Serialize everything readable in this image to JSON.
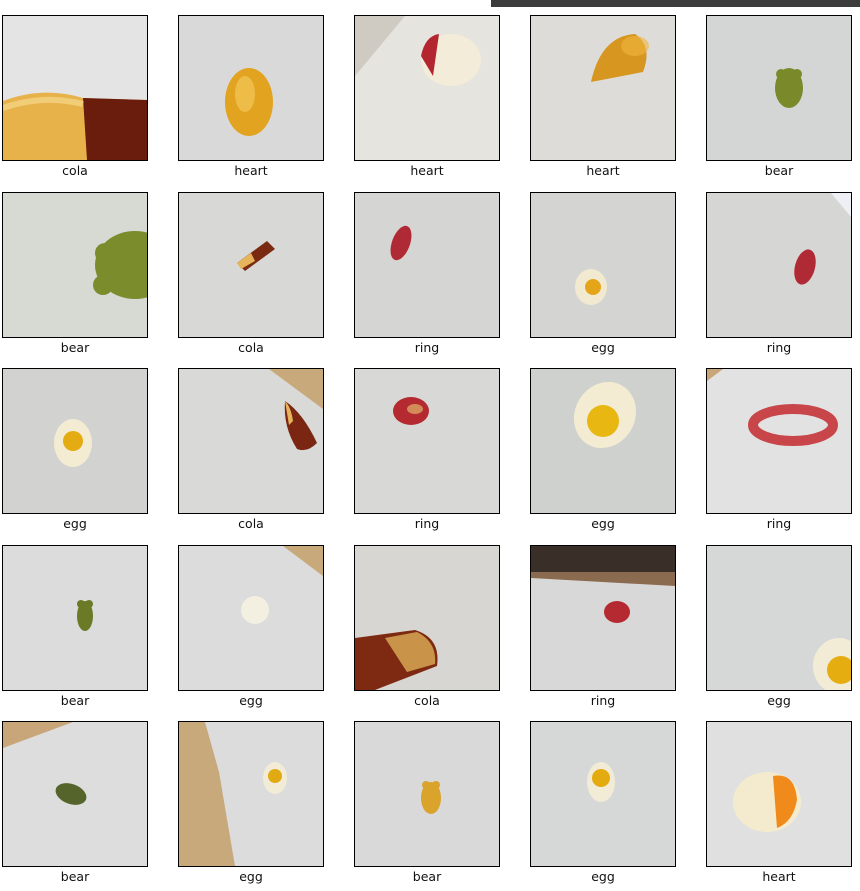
{
  "grid": {
    "items": [
      {
        "label": "cola"
      },
      {
        "label": "heart"
      },
      {
        "label": "heart"
      },
      {
        "label": "heart"
      },
      {
        "label": "bear"
      },
      {
        "label": "bear"
      },
      {
        "label": "cola"
      },
      {
        "label": "ring"
      },
      {
        "label": "egg"
      },
      {
        "label": "ring"
      },
      {
        "label": "egg"
      },
      {
        "label": "cola"
      },
      {
        "label": "ring"
      },
      {
        "label": "egg"
      },
      {
        "label": "ring"
      },
      {
        "label": "bear"
      },
      {
        "label": "egg"
      },
      {
        "label": "cola"
      },
      {
        "label": "ring"
      },
      {
        "label": "egg"
      },
      {
        "label": "bear"
      },
      {
        "label": "egg"
      },
      {
        "label": "bear"
      },
      {
        "label": "egg"
      },
      {
        "label": "heart"
      }
    ]
  }
}
